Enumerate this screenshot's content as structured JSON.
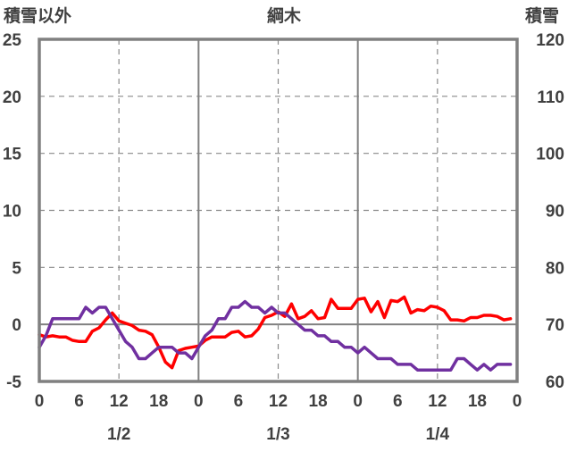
{
  "chart_data": {
    "type": "line",
    "title": "綱木",
    "left_axis_label": "積雪以外",
    "right_axis_label": "積雪",
    "left_axis": {
      "min": -5,
      "max": 25,
      "ticks": [
        25,
        20,
        15,
        10,
        5,
        0,
        -5
      ],
      "tick_labels": [
        "25",
        "20",
        "15",
        "10",
        "5",
        "0",
        "-5"
      ]
    },
    "right_axis": {
      "min": 60,
      "max": 120,
      "ticks": [
        120,
        110,
        100,
        90,
        80,
        70,
        60
      ],
      "tick_labels": [
        "120",
        "110",
        "100",
        "90",
        "80",
        "70",
        "60"
      ]
    },
    "x_axis": {
      "hours_range": [
        0,
        72
      ],
      "tick_hours": [
        0,
        6,
        12,
        18,
        24,
        30,
        36,
        42,
        48,
        54,
        60,
        66,
        72
      ],
      "tick_labels": [
        "0",
        "6",
        "12",
        "18",
        "0",
        "6",
        "12",
        "18",
        "0",
        "6",
        "12",
        "18",
        "0"
      ],
      "date_labels": [
        {
          "label": "1/2",
          "hour": 12
        },
        {
          "label": "1/3",
          "hour": 36
        },
        {
          "label": "1/4",
          "hour": 60
        }
      ]
    },
    "grid": true,
    "series": [
      {
        "name": "",
        "axis": "left",
        "color": "#ff0000",
        "x": [
          0,
          1,
          2,
          3,
          4,
          5,
          6,
          7,
          8,
          9,
          10,
          11,
          12,
          13,
          14,
          15,
          16,
          17,
          18,
          19,
          20,
          21,
          22,
          23,
          24,
          25,
          26,
          27,
          28,
          29,
          30,
          31,
          32,
          33,
          34,
          35,
          36,
          37,
          38,
          39,
          40,
          41,
          42,
          43,
          44,
          45,
          46,
          47,
          48,
          49,
          50,
          51,
          52,
          53,
          54,
          55,
          56,
          57,
          58,
          59,
          60,
          61,
          62,
          63,
          64,
          65,
          66,
          67,
          68,
          69,
          70,
          71
        ],
        "y": [
          -0.9,
          -1.1,
          -1.0,
          -1.1,
          -1.1,
          -1.4,
          -1.5,
          -1.5,
          -0.6,
          -0.3,
          0.4,
          1.0,
          0.3,
          0.1,
          -0.1,
          -0.5,
          -0.6,
          -0.9,
          -2.0,
          -3.3,
          -3.8,
          -2.3,
          -2.1,
          -2.0,
          -1.9,
          -1.4,
          -1.1,
          -1.1,
          -1.1,
          -0.7,
          -0.6,
          -1.1,
          -1.0,
          -0.4,
          0.6,
          0.8,
          1.1,
          0.7,
          1.8,
          0.5,
          0.7,
          1.2,
          0.5,
          0.6,
          2.2,
          1.4,
          1.4,
          1.4,
          2.2,
          2.3,
          1.1,
          2.0,
          0.6,
          2.1,
          2.0,
          2.4,
          1.0,
          1.3,
          1.2,
          1.6,
          1.5,
          1.2,
          0.4,
          0.4,
          0.3,
          0.6,
          0.6,
          0.8,
          0.8,
          0.7,
          0.4,
          0.5
        ]
      },
      {
        "name": "",
        "axis": "right",
        "color": "#7030a0",
        "x": [
          0,
          1,
          2,
          3,
          4,
          5,
          6,
          7,
          8,
          9,
          10,
          11,
          12,
          13,
          14,
          15,
          16,
          17,
          18,
          19,
          20,
          21,
          22,
          23,
          24,
          25,
          26,
          27,
          28,
          29,
          30,
          31,
          32,
          33,
          34,
          35,
          36,
          37,
          38,
          39,
          40,
          41,
          42,
          43,
          44,
          45,
          46,
          47,
          48,
          49,
          50,
          51,
          52,
          53,
          54,
          55,
          56,
          57,
          58,
          59,
          60,
          61,
          62,
          63,
          64,
          65,
          66,
          67,
          68,
          69,
          70,
          71
        ],
        "y": [
          66,
          68,
          71,
          71,
          71,
          71,
          71,
          73,
          72,
          73,
          73,
          71,
          69,
          67,
          66,
          64,
          64,
          65,
          66,
          66,
          66,
          65,
          65,
          64,
          66,
          68,
          69,
          71,
          71,
          73,
          73,
          74,
          73,
          73,
          72,
          73,
          72,
          72,
          71,
          70,
          69,
          69,
          68,
          68,
          67,
          67,
          66,
          66,
          65,
          66,
          65,
          64,
          64,
          64,
          63,
          63,
          63,
          62,
          62,
          62,
          62,
          62,
          62,
          64,
          64,
          63,
          62,
          63,
          62,
          63,
          63,
          63
        ]
      }
    ]
  }
}
